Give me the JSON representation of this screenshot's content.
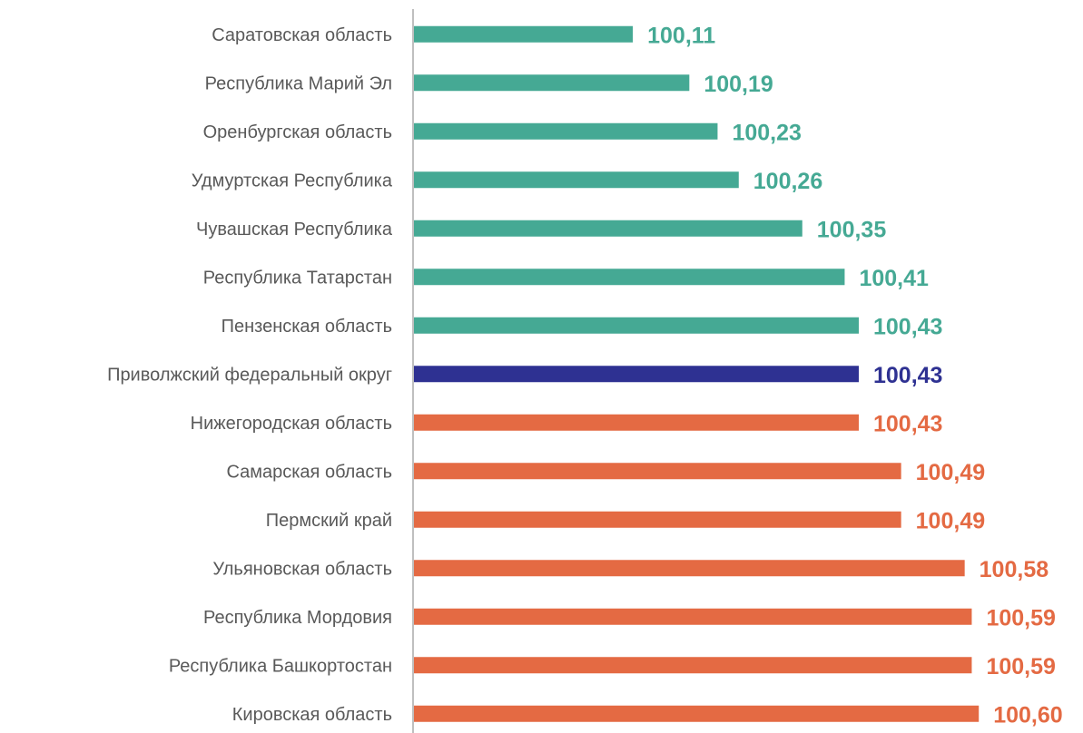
{
  "chart_data": {
    "type": "hbar",
    "categories": [
      "Саратовская область",
      "Республика Марий Эл",
      "Оренбургская область",
      "Удмуртская Республика",
      "Чувашская Республика",
      "Республика Татарстан",
      "Пензенская область",
      "Приволжский федеральный округ",
      "Нижегородская область",
      "Самарская область",
      "Пермский край",
      "Ульяновская область",
      "Республика Мордовия",
      "Республика Башкортостан",
      "Кировская область"
    ],
    "values": [
      100.11,
      100.19,
      100.23,
      100.26,
      100.35,
      100.41,
      100.43,
      100.43,
      100.43,
      100.49,
      100.49,
      100.58,
      100.59,
      100.59,
      100.6
    ],
    "value_labels": [
      "100,11",
      "100,19",
      "100,23",
      "100,26",
      "100,35",
      "100,41",
      "100,43",
      "100,43",
      "100,43",
      "100,49",
      "100,49",
      "100,58",
      "100,59",
      "100,59",
      "100,60"
    ],
    "colors": [
      "#45a994",
      "#45a994",
      "#45a994",
      "#45a994",
      "#45a994",
      "#45a994",
      "#45a994",
      "#2e3192",
      "#e46a43",
      "#e46a43",
      "#e46a43",
      "#e46a43",
      "#e46a43",
      "#e46a43",
      "#e46a43"
    ],
    "xlim": [
      99.8,
      100.7
    ]
  }
}
